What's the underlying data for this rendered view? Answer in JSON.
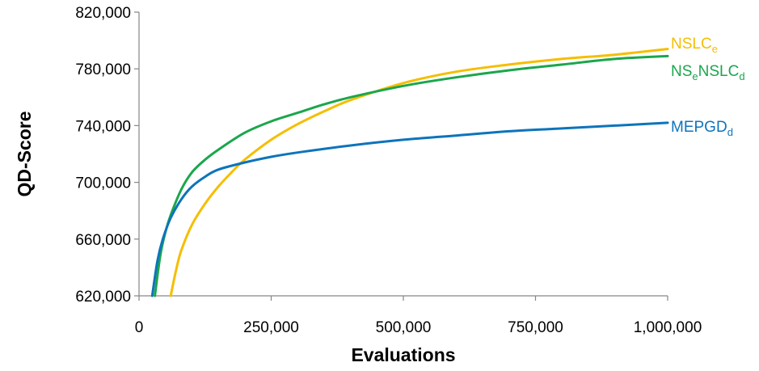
{
  "chart_data": {
    "type": "line",
    "title": "",
    "xlabel": "Evaluations",
    "ylabel": "QD-Score",
    "xlim": [
      0,
      1000000
    ],
    "ylim": [
      620000,
      820000
    ],
    "grid": false,
    "legend": "inline-right",
    "x_ticks": [
      0,
      250000,
      500000,
      750000,
      1000000
    ],
    "x_tick_labels": [
      "0",
      "250,000",
      "500,000",
      "750,000",
      "1,000,000"
    ],
    "y_ticks": [
      620000,
      660000,
      700000,
      740000,
      780000,
      820000
    ],
    "y_tick_labels": [
      "620,000",
      "660,000",
      "700,000",
      "740,000",
      "780,000",
      "820,000"
    ],
    "series": [
      {
        "name": "NSLCe",
        "label_main": "NSLC",
        "label_sub": "e",
        "label_rest": "",
        "label_rest_sub": "",
        "color": "#F5BE00",
        "x": [
          60000,
          70000,
          80000,
          100000,
          125000,
          150000,
          175000,
          200000,
          250000,
          300000,
          350000,
          400000,
          500000,
          600000,
          700000,
          800000,
          900000,
          1000000
        ],
        "y": [
          620000,
          638000,
          652000,
          670000,
          685000,
          697000,
          707000,
          716000,
          730000,
          741000,
          750000,
          758000,
          770000,
          778000,
          783000,
          787000,
          790000,
          794000
        ]
      },
      {
        "name": "NSeNSLCd",
        "label_main": "NS",
        "label_sub": "e",
        "label_rest": "NSLC",
        "label_rest_sub": "d",
        "color": "#1BA64C",
        "x": [
          30000,
          40000,
          50000,
          60000,
          80000,
          100000,
          125000,
          150000,
          200000,
          250000,
          300000,
          350000,
          400000,
          500000,
          600000,
          700000,
          800000,
          900000,
          1000000
        ],
        "y": [
          620000,
          648000,
          665000,
          677000,
          695000,
          707000,
          716000,
          723000,
          735000,
          743000,
          749000,
          755000,
          760000,
          768000,
          774000,
          779000,
          783000,
          787000,
          789000
        ]
      },
      {
        "name": "MEPGDd",
        "label_main": "MEPGD",
        "label_sub": "d",
        "label_rest": "",
        "label_rest_sub": "",
        "color": "#0D74BB",
        "x": [
          25000,
          35000,
          45000,
          60000,
          80000,
          100000,
          125000,
          150000,
          200000,
          250000,
          300000,
          400000,
          500000,
          600000,
          700000,
          800000,
          900000,
          1000000
        ],
        "y": [
          620000,
          645000,
          660000,
          675000,
          688000,
          697000,
          704000,
          709000,
          714000,
          718000,
          721000,
          726000,
          730000,
          733000,
          736000,
          738000,
          740000,
          742000
        ]
      }
    ]
  }
}
